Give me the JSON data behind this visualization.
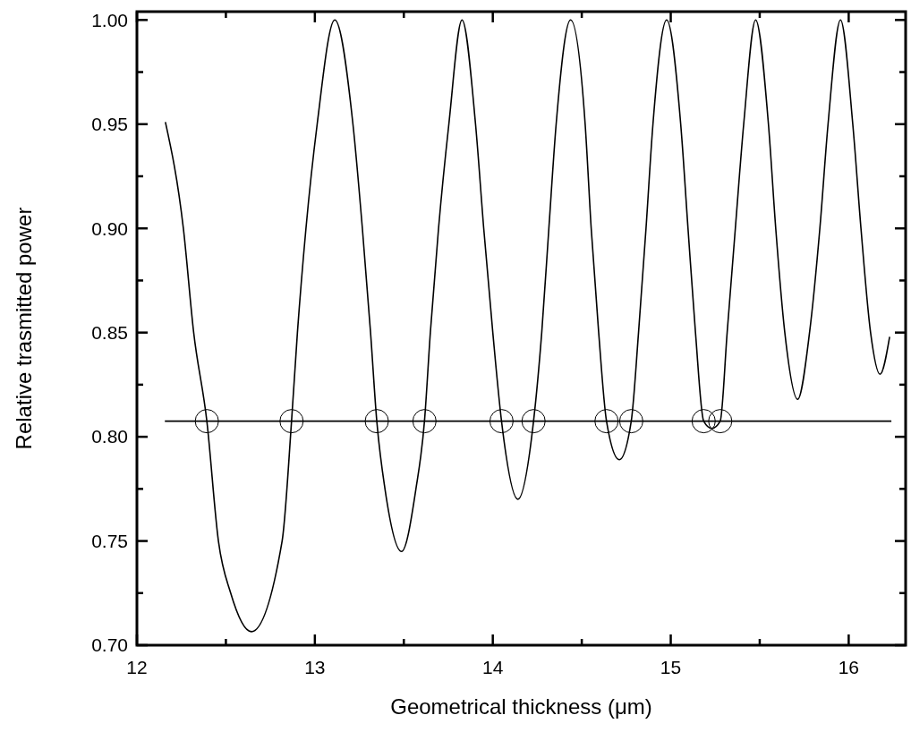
{
  "chart_data": {
    "type": "line",
    "xlabel": "Geometrical thickness (μm)",
    "ylabel": "Relative trasmitted power",
    "xlim": [
      12,
      16.32
    ],
    "ylim": [
      0.7,
      1.004
    ],
    "xticks": [
      12,
      {
        "value": 12.5,
        "label": null
      },
      13,
      {
        "value": 13.5,
        "label": null
      },
      14,
      {
        "value": 14.5,
        "label": null
      },
      15,
      {
        "value": 15.5,
        "label": null
      },
      16
    ],
    "yticks": [
      {
        "value": 0.7,
        "label": "0.70"
      },
      {
        "value": 0.725,
        "label": null
      },
      {
        "value": 0.75,
        "label": "0.75"
      },
      {
        "value": 0.775,
        "label": null
      },
      {
        "value": 0.8,
        "label": "0.80"
      },
      {
        "value": 0.825,
        "label": null
      },
      {
        "value": 0.85,
        "label": "0.85"
      },
      {
        "value": 0.875,
        "label": null
      },
      {
        "value": 0.9,
        "label": "0.90"
      },
      {
        "value": 0.925,
        "label": null
      },
      {
        "value": 0.95,
        "label": "0.95"
      },
      {
        "value": 0.975,
        "label": null
      },
      {
        "value": 1.0,
        "label": "1.00"
      }
    ],
    "grid": false,
    "series": [
      {
        "color": "#000000",
        "marker": "none",
        "x": [
          12.16,
          12.261,
          12.319,
          12.393,
          12.458,
          12.527,
          12.643,
          12.816,
          12.869,
          12.902,
          12.95,
          13.013,
          13.112,
          13.214,
          13.267,
          13.313,
          13.348,
          13.394,
          13.487,
          13.568,
          13.616,
          13.649,
          13.695,
          13.753,
          13.827,
          13.903,
          13.949,
          14.0,
          14.049,
          14.141,
          14.229,
          14.275,
          14.315,
          14.356,
          14.437,
          14.519,
          14.553,
          14.595,
          14.639,
          14.711,
          14.778,
          14.819,
          14.861,
          14.9,
          14.977,
          15.056,
          15.097,
          15.139,
          15.185,
          15.231,
          15.278,
          15.317,
          15.363,
          15.41,
          15.477,
          15.549,
          15.59,
          15.641,
          15.713,
          15.78,
          15.838,
          15.884,
          15.954,
          16.023,
          16.069,
          16.123,
          16.176,
          16.23
        ],
        "values": [
          0.951,
          0.9,
          0.85,
          0.8075,
          0.75,
          0.725,
          0.7065,
          0.75,
          0.8075,
          0.85,
          0.9,
          0.95,
          1.0,
          0.95,
          0.9,
          0.85,
          0.8075,
          0.775,
          0.745,
          0.775,
          0.8075,
          0.85,
          0.9,
          0.95,
          1.0,
          0.95,
          0.9,
          0.85,
          0.8075,
          0.77,
          0.8075,
          0.85,
          0.9,
          0.95,
          1.0,
          0.95,
          0.9,
          0.85,
          0.8075,
          0.789,
          0.8075,
          0.85,
          0.9,
          0.95,
          1.0,
          0.95,
          0.9,
          0.85,
          0.8075,
          0.804,
          0.8075,
          0.85,
          0.9,
          0.95,
          1.0,
          0.95,
          0.9,
          0.85,
          0.818,
          0.85,
          0.9,
          0.95,
          1.0,
          0.95,
          0.9,
          0.85,
          0.83,
          0.848
        ]
      },
      {
        "color": "#000000",
        "marker": "none",
        "x": [
          12.157,
          16.24
        ],
        "values": [
          0.8075,
          0.8075
        ]
      },
      {
        "type": "scatter",
        "color": "#000000",
        "marker": "circle",
        "x": [
          12.393,
          12.869,
          13.348,
          13.616,
          14.049,
          14.229,
          14.639,
          14.778,
          15.185,
          15.278
        ],
        "values": [
          0.8075,
          0.8075,
          0.8075,
          0.8075,
          0.8075,
          0.8075,
          0.8075,
          0.8075,
          0.8075,
          0.8075
        ]
      }
    ]
  }
}
